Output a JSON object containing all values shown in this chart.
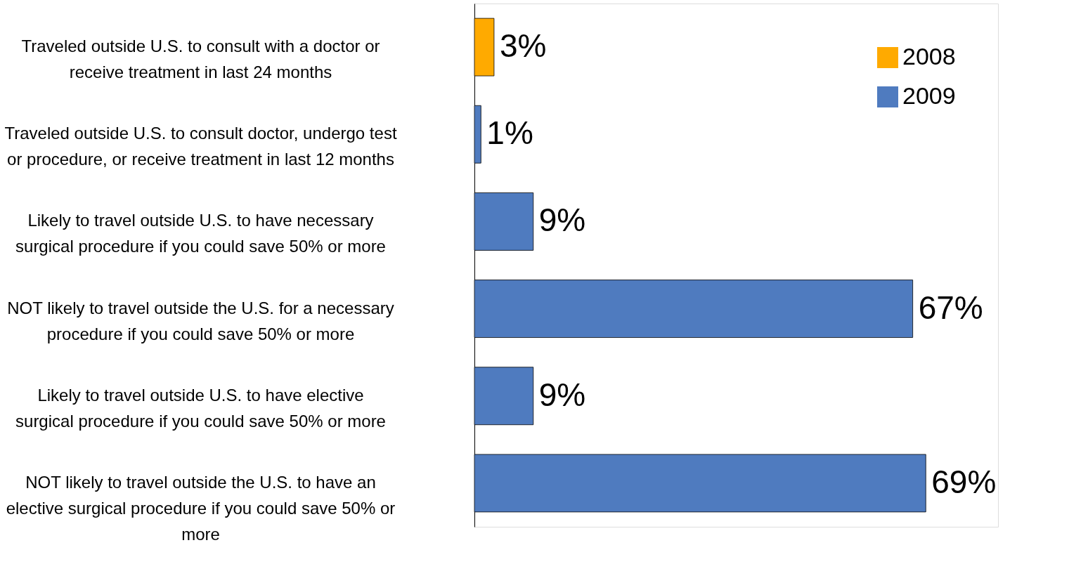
{
  "chart_data": {
    "type": "bar",
    "orientation": "horizontal",
    "relative": false,
    "categories": [
      "Traveled outside U.S. to consult with a doctor or receive treatment in last 24 months",
      "Traveled outside U.S. to consult doctor, undergo test or procedure, or receive treatment in last 12 months",
      "Likely to travel outside U.S. to have necessary surgical procedure if you could save 50% or more",
      "NOT likely to travel outside the U.S. for a necessary procedure if you could save 50% or more",
      "Likely to travel outside U.S. to have elective surgical procedure if you could save 50% or more",
      "NOT likely to travel outside the U.S. to have an elective surgical procedure if you could save 50% or more"
    ],
    "series": [
      {
        "name": "2008",
        "color": "#ffaa00",
        "values": [
          3,
          null,
          null,
          null,
          null,
          null
        ],
        "value_labels": [
          "3%",
          null,
          null,
          null,
          null,
          null
        ]
      },
      {
        "name": "2009",
        "color": "#4f7bbf",
        "values": [
          null,
          1,
          9,
          67,
          9,
          69
        ],
        "value_labels": [
          null,
          "1%",
          "9%",
          "67%",
          "9%",
          "69%"
        ]
      }
    ],
    "legend": "top right",
    "grid": false
  }
}
